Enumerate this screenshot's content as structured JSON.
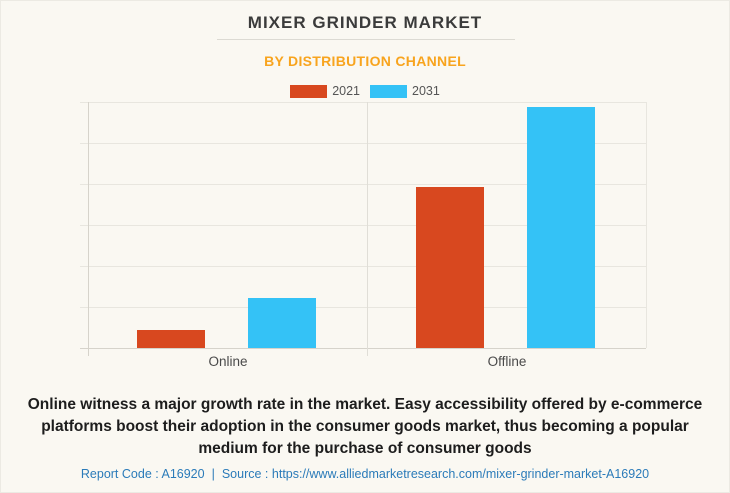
{
  "page": {
    "title": "MIXER GRINDER MARKET",
    "subtitle": "BY DISTRIBUTION CHANNEL",
    "description": "Online witness a major growth rate in the market. Easy accessibility offered by e-commerce platforms boost their adoption in the consumer goods market, thus becoming a popular medium for the purchase of consumer goods",
    "footer": {
      "report_code": "Report Code : A16920",
      "separator": "|",
      "source_label": "Source :",
      "source_url": "https://www.alliedmarketresearch.com/mixer-grinder-market-A16920"
    }
  },
  "colors": {
    "background": "#faf8f2",
    "title_text": "#3b3b3b",
    "subtitle_orange": "#f8a41e",
    "series_2021_red": "#d8481f",
    "series_2031_blue": "#34c2f6",
    "footer_link_blue": "#2b7bb9",
    "gridline": "#e8e6df",
    "axis_line": "#d6d3cb"
  },
  "chart_data": {
    "type": "bar",
    "title": "MIXER GRINDER MARKET",
    "subtitle": "BY DISTRIBUTION CHANNEL",
    "categories": [
      "Online",
      "Offline"
    ],
    "series": [
      {
        "name": "2021",
        "color": "#d8481f",
        "values": [
          7.3,
          65.5
        ]
      },
      {
        "name": "2031",
        "color": "#34c2f6",
        "values": [
          20.3,
          98
        ]
      }
    ],
    "ylim": [
      0,
      100
    ],
    "y_axis_labels_visible": false,
    "grid": true,
    "legend_position": "top"
  }
}
